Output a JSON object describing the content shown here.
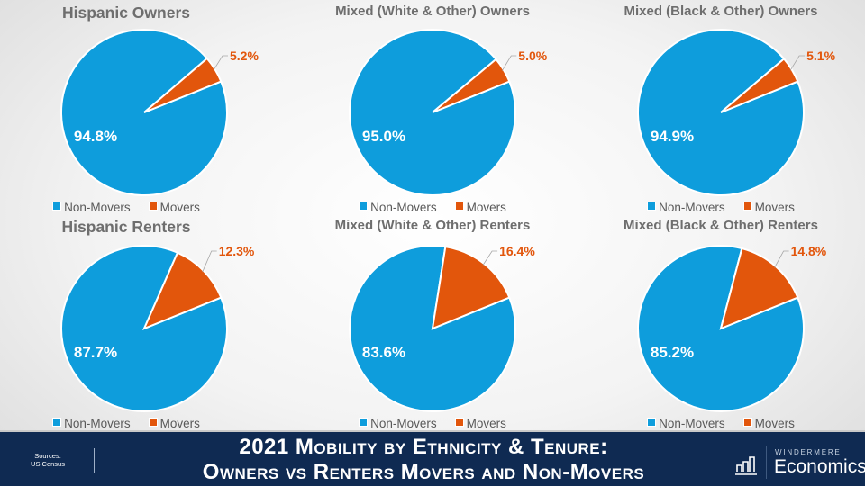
{
  "colors": {
    "non_movers": "#0e9ddc",
    "movers": "#e2560c",
    "inner_label": "#ffffff",
    "outer_label": "#e2560c"
  },
  "chart_data": [
    {
      "type": "pie",
      "title": "Hispanic Owners",
      "categories": [
        "Non-Movers",
        "Movers"
      ],
      "values": [
        94.8,
        5.2
      ],
      "labels": [
        "94.8%",
        "5.2%"
      ],
      "legend": "bottom"
    },
    {
      "type": "pie",
      "title": "Mixed (White & Other) Owners",
      "categories": [
        "Non-Movers",
        "Movers"
      ],
      "values": [
        95.0,
        5.0
      ],
      "labels": [
        "95.0%",
        "5.0%"
      ],
      "legend": "bottom"
    },
    {
      "type": "pie",
      "title": "Mixed (Black & Other) Owners",
      "categories": [
        "Non-Movers",
        "Movers"
      ],
      "values": [
        94.9,
        5.1
      ],
      "labels": [
        "94.9%",
        "5.1%"
      ],
      "legend": "bottom"
    },
    {
      "type": "pie",
      "title": "Hispanic Renters",
      "categories": [
        "Non-Movers",
        "Movers"
      ],
      "values": [
        87.7,
        12.3
      ],
      "labels": [
        "87.7%",
        "12.3%"
      ],
      "legend": "bottom"
    },
    {
      "type": "pie",
      "title": "Mixed (White & Other) Renters",
      "categories": [
        "Non-Movers",
        "Movers"
      ],
      "values": [
        83.6,
        16.4
      ],
      "labels": [
        "83.6%",
        "16.4%"
      ],
      "legend": "bottom"
    },
    {
      "type": "pie",
      "title": "Mixed (Black & Other) Renters",
      "categories": [
        "Non-Movers",
        "Movers"
      ],
      "values": [
        85.2,
        14.8
      ],
      "labels": [
        "85.2%",
        "14.8%"
      ],
      "legend": "bottom"
    }
  ],
  "footer": {
    "sources_label": "Sources:",
    "sources_value": "US Census",
    "title_line1": "2021 Mobility by Ethnicity & Tenure:",
    "title_line2": "Owners vs Renters Movers and Non-Movers",
    "logo_brand": "WINDERMERE",
    "logo_name": "Economics",
    "logo_icon": "bar-chart-icon"
  }
}
